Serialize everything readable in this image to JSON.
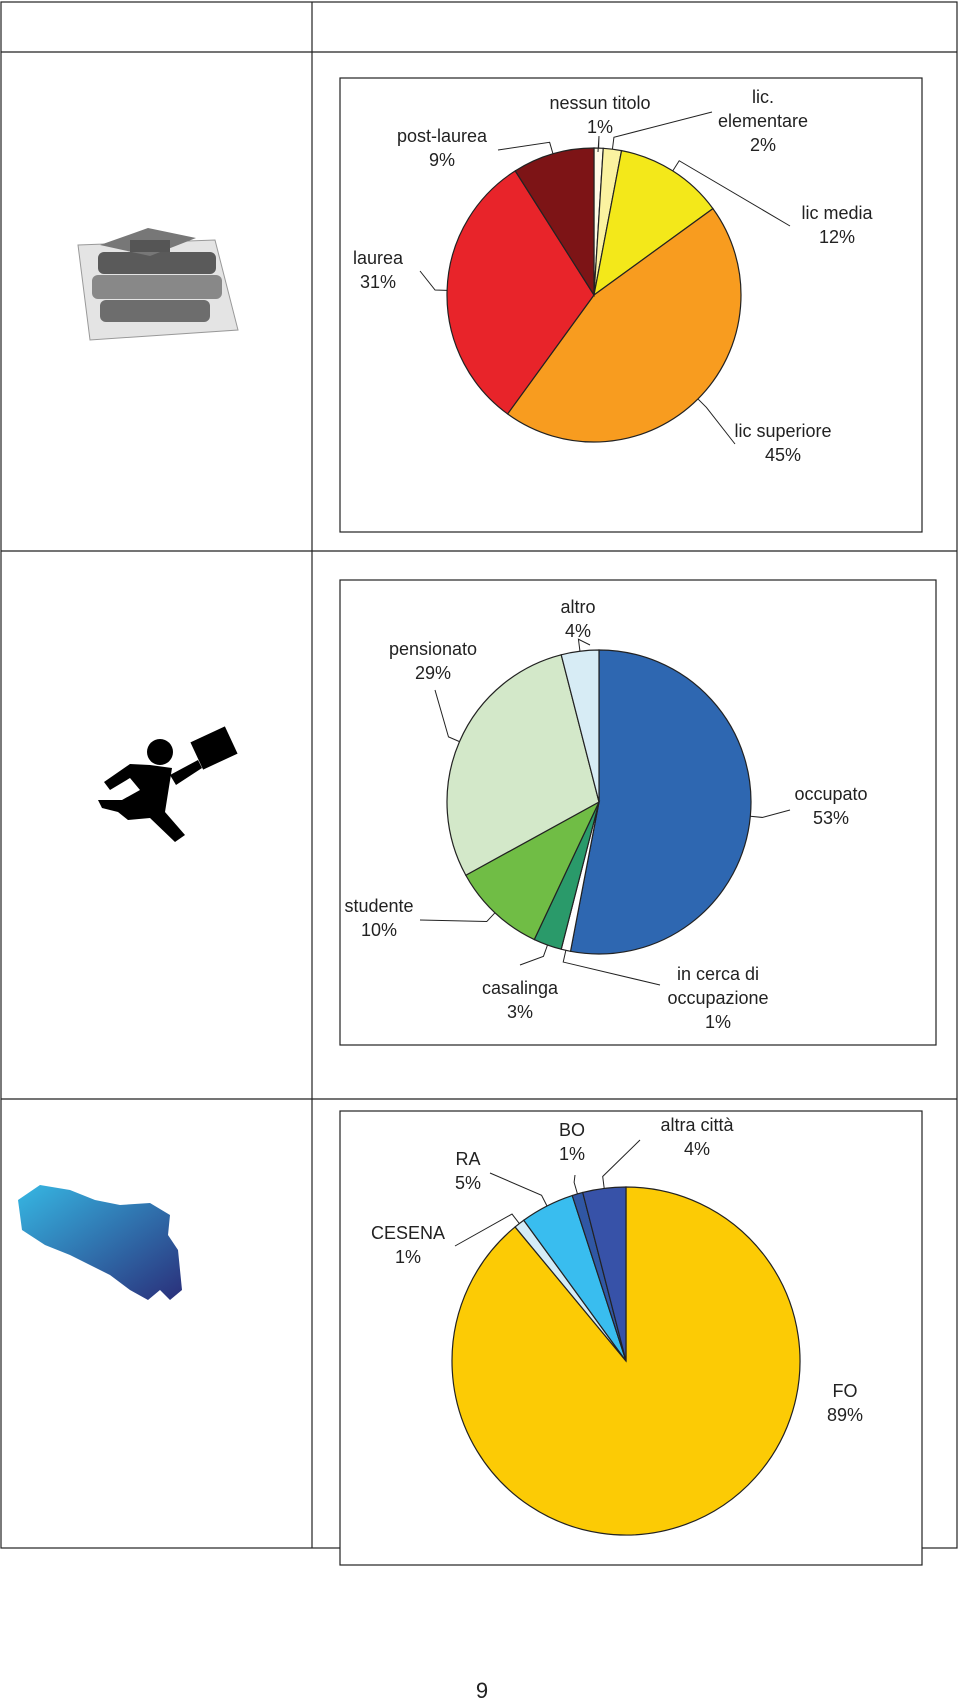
{
  "chart_data": [
    {
      "type": "pie",
      "categories": [
        "nessun titolo",
        "lic. elementare",
        "lic media",
        "lic superiore",
        "laurea",
        "post-laurea"
      ],
      "values": [
        1,
        2,
        12,
        45,
        31,
        9
      ],
      "value_labels": [
        "1%",
        "2%",
        "12%",
        "45%",
        "31%",
        "9%"
      ],
      "colors": [
        "#fffbe6",
        "#fbf2a0",
        "#f3e81a",
        "#f89c1f",
        "#e8242a",
        "#7d1416"
      ]
    },
    {
      "type": "pie",
      "categories": [
        "occupato",
        "in cerca di occupazione",
        "casalinga",
        "studente",
        "pensionato",
        "altro"
      ],
      "values": [
        53,
        1,
        3,
        10,
        29,
        4
      ],
      "value_labels": [
        "53%",
        "1%",
        "3%",
        "10%",
        "29%",
        "4%"
      ],
      "colors": [
        "#2e67b1",
        "#ffffff",
        "#2a9a6a",
        "#70bd45",
        "#d3e8c9",
        "#d7ecf5"
      ]
    },
    {
      "type": "pie",
      "categories": [
        "FO",
        "CESENA",
        "RA",
        "BO",
        "altra città"
      ],
      "values": [
        89,
        1,
        5,
        1,
        4
      ],
      "value_labels": [
        "89%",
        "1%",
        "5%",
        "1%",
        "4%"
      ],
      "colors": [
        "#fccb05",
        "#d4ecf7",
        "#39bdef",
        "#3057a4",
        "#3752a8"
      ]
    }
  ],
  "page_number": "9"
}
